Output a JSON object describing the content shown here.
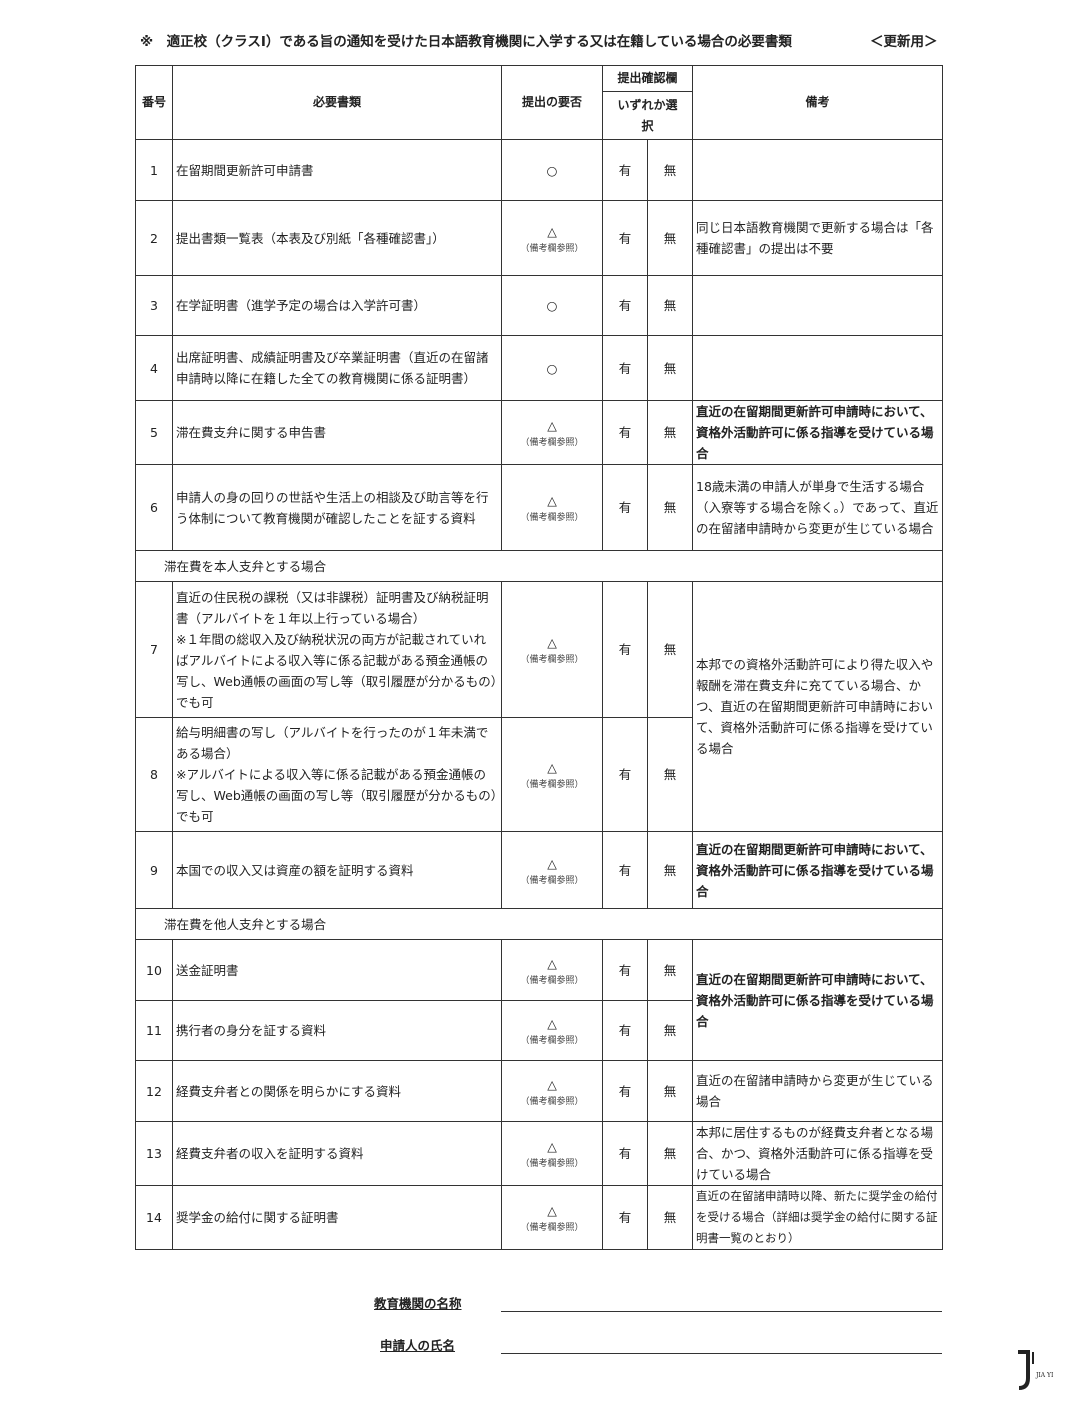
{
  "title": {
    "text": "※　適正校（クラスⅠ）である旨の通知を受けた日本語教育機関に入学する又は在籍している場合の必要書類",
    "suffix": "＜更新用＞"
  },
  "headers": {
    "no": "番号",
    "document": "必要書類",
    "required": "提出の要否",
    "check": "提出確認欄",
    "choose": "いずれか選択",
    "remarks": "備考"
  },
  "rows": [
    {
      "no": "1",
      "name": "在留期間更新許可申請書",
      "req": "○",
      "note": "",
      "yes": "有",
      "nil": "無",
      "remark": ""
    },
    {
      "no": "2",
      "name": "提出書類一覧表（本表及び別紙「各種確認書」）",
      "req": "△",
      "note": "（備考欄参照）",
      "yes": "有",
      "nil": "無",
      "remark": "同じ日本語教育機関で更新する場合は「各種確認書」の提出は不要"
    },
    {
      "no": "3",
      "name": "在学証明書（進学予定の場合は入学許可書）",
      "req": "○",
      "note": "",
      "yes": "有",
      "nil": "無",
      "remark": ""
    },
    {
      "no": "4",
      "name": "出席証明書、成績証明書及び卒業証明書（直近の在留諸申請時以降に在籍した全ての教育機関に係る証明書）",
      "req": "○",
      "note": "",
      "yes": "有",
      "nil": "無",
      "remark": ""
    },
    {
      "no": "5",
      "name": "滞在費支弁に関する申告書",
      "req": "△",
      "note": "（備考欄参照）",
      "yes": "有",
      "nil": "無",
      "remark": "直近の在留期間更新許可申請時において、資格外活動許可に係る指導を受けている場合",
      "bold": true
    },
    {
      "no": "6",
      "name": "申請人の身の回りの世話や生活上の相談及び助言等を行う体制について教育機関が確認したことを証する資料",
      "req": "△",
      "note": "（備考欄参照）",
      "yes": "有",
      "nil": "無",
      "remark": "18歳未満の申請人が単身で生活する場合（入寮等する場合を除く。）であって、直近の在留諸申請時から変更が生じている場合"
    },
    {
      "section": "滞在費を本人支弁とする場合"
    },
    {
      "no": "7",
      "name": "直近の住民税の課税（又は非課税）証明書及び納税証明書（アルバイトを１年以上行っている場合）\n※１年間の総収入及び納税状況の両方が記載されていればアルバイトによる収入等に係る記載がある預金通帳の写し、Web通帳の画面の写し等（取引履歴が分かるもの）でも可",
      "req": "△",
      "note": "（備考欄参照）",
      "yes": "有",
      "nil": "無",
      "remark": "本邦での資格外活動許可により得た収入や報酬を滞在費支弁に充てている場合、かつ、直近の在留期間更新許可申請時において、資格外活動許可に係る指導を受けている場合"
    },
    {
      "no": "8",
      "name": "給与明細書の写し（アルバイトを行ったのが１年未満である場合）\n※アルバイトによる収入等に係る記載がある預金通帳の写し、Web通帳の画面の写し等（取引履歴が分かるもの）でも可",
      "req": "△",
      "note": "（備考欄参照）",
      "yes": "有",
      "nil": "無",
      "remark": null
    },
    {
      "no": "9",
      "name": "本国での収入又は資産の額を証明する資料",
      "req": "△",
      "note": "（備考欄参照）",
      "yes": "有",
      "nil": "無",
      "remark": "直近の在留期間更新許可申請時において、資格外活動許可に係る指導を受けている場合",
      "bold": true
    },
    {
      "section": "滞在費を他人支弁とする場合"
    },
    {
      "no": "10",
      "name": "送金証明書",
      "req": "△",
      "note": "（備考欄参照）",
      "yes": "有",
      "nil": "無",
      "remark": "直近の在留期間更新許可申請時において、資格外活動許可に係る指導を受けている場合",
      "bold": true
    },
    {
      "no": "11",
      "name": "携行者の身分を証する資料",
      "req": "△",
      "note": "（備考欄参照）",
      "yes": "有",
      "nil": "無",
      "remark": null
    },
    {
      "no": "12",
      "name": "経費支弁者との関係を明らかにする資料",
      "req": "△",
      "note": "（備考欄参照）",
      "yes": "有",
      "nil": "無",
      "remark": "直近の在留諸申請時から変更が生じている場合"
    },
    {
      "no": "13",
      "name": "経費支弁者の収入を証明する資料",
      "req": "△",
      "note": "（備考欄参照）",
      "yes": "有",
      "nil": "無",
      "remark": "本邦に居住するものが経費支弁者となる場合、かつ、資格外活動許可に係る指導を受けている場合"
    },
    {
      "no": "14",
      "name": "奨学金の給付に関する証明書",
      "req": "△",
      "note": "（備考欄参照）",
      "yes": "有",
      "nil": "無",
      "remark": "直近の在留諸申請時以降、新たに奨学金の給付を受ける場合（詳細は奨学金の給付に関する証明書一覧のとおり）",
      "small": true
    }
  ],
  "signature": {
    "school_label": "教育機関の名称",
    "applicant_label": "申請人の氏名"
  },
  "logo": {
    "text": "JIA YI"
  }
}
